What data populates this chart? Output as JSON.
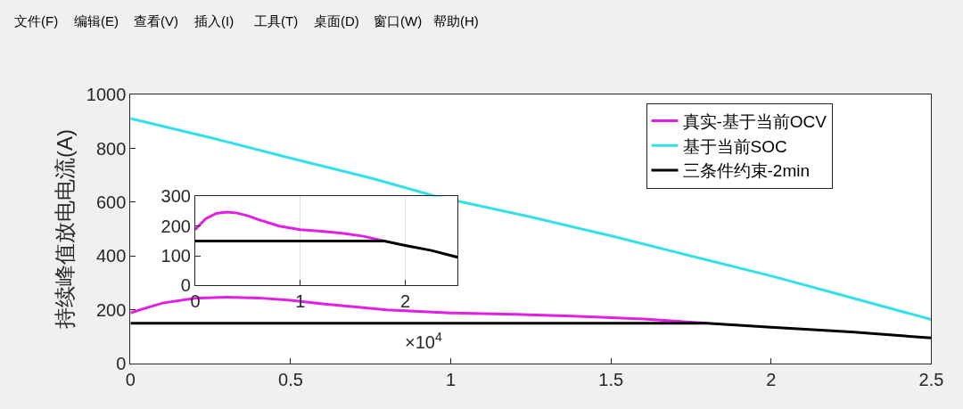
{
  "chart_data": [
    {
      "type": "line",
      "ylabel": "持续峰值放电电流(A)",
      "xlim": [
        0,
        2.5
      ],
      "xticks": [
        0,
        0.5,
        1,
        1.5,
        2,
        2.5
      ],
      "ylim": [
        0,
        1000
      ],
      "yticks": [
        0,
        200,
        400,
        600,
        800,
        1000
      ],
      "grid": false,
      "legend": "top right",
      "line_style": "solid",
      "marker": "none",
      "annotations": [
        "文件(F)",
        "编辑(E)",
        "查看(V)",
        "插入(I)",
        "工具(T)",
        "桌面(D)",
        "窗口(W)",
        "帮助(H)"
      ],
      "series": [
        {
          "name": "真实-基于当前OCV",
          "color": "#e31ee3",
          "x": [
            0,
            0.03,
            0.1,
            0.2,
            0.3,
            0.4,
            0.5,
            0.6,
            0.8,
            1.0,
            1.2,
            1.4,
            1.6,
            1.8
          ],
          "values": [
            188,
            200,
            225,
            243,
            247,
            244,
            235,
            222,
            200,
            188,
            183,
            176,
            166,
            150
          ]
        },
        {
          "name": "基于当前SOC",
          "color": "#33e0e8",
          "x": [
            0,
            0.25,
            0.5,
            0.75,
            0.95,
            1.25,
            1.51,
            1.75,
            2.0,
            2.25,
            2.5
          ],
          "values": [
            911,
            840,
            764,
            690,
            623,
            545,
            472,
            400,
            326,
            245,
            164
          ]
        },
        {
          "name": "三条件约束-2min",
          "color": "#000000",
          "x": [
            0,
            0.5,
            1,
            1.5,
            1.8,
            2.0,
            2.25,
            2.5
          ],
          "values": [
            150,
            150,
            150,
            150,
            150,
            135,
            118,
            95
          ]
        }
      ]
    },
    {
      "type": "line",
      "xlim": [
        0,
        2.5
      ],
      "xticks": [
        0,
        1,
        2
      ],
      "ylim": [
        0,
        300
      ],
      "yticks": [
        0,
        100,
        200,
        300
      ],
      "grid": "x",
      "legend": false,
      "line_style": "solid",
      "marker": "none",
      "annotations": [
        "×10$^{4}$"
      ],
      "series": [
        {
          "color": "#e31ee3",
          "x": [
            0,
            0.03,
            0.1,
            0.2,
            0.3,
            0.4,
            0.5,
            0.6,
            0.8,
            1.0,
            1.2,
            1.4,
            1.6,
            1.8
          ],
          "values": [
            188,
            200,
            225,
            243,
            247,
            244,
            235,
            222,
            200,
            188,
            183,
            176,
            166,
            150
          ]
        },
        {
          "color": "#000000",
          "x": [
            0,
            0.5,
            1,
            1.5,
            1.8,
            2.0,
            2.25,
            2.5
          ],
          "values": [
            150,
            150,
            150,
            150,
            150,
            135,
            118,
            95
          ]
        }
      ]
    }
  ]
}
